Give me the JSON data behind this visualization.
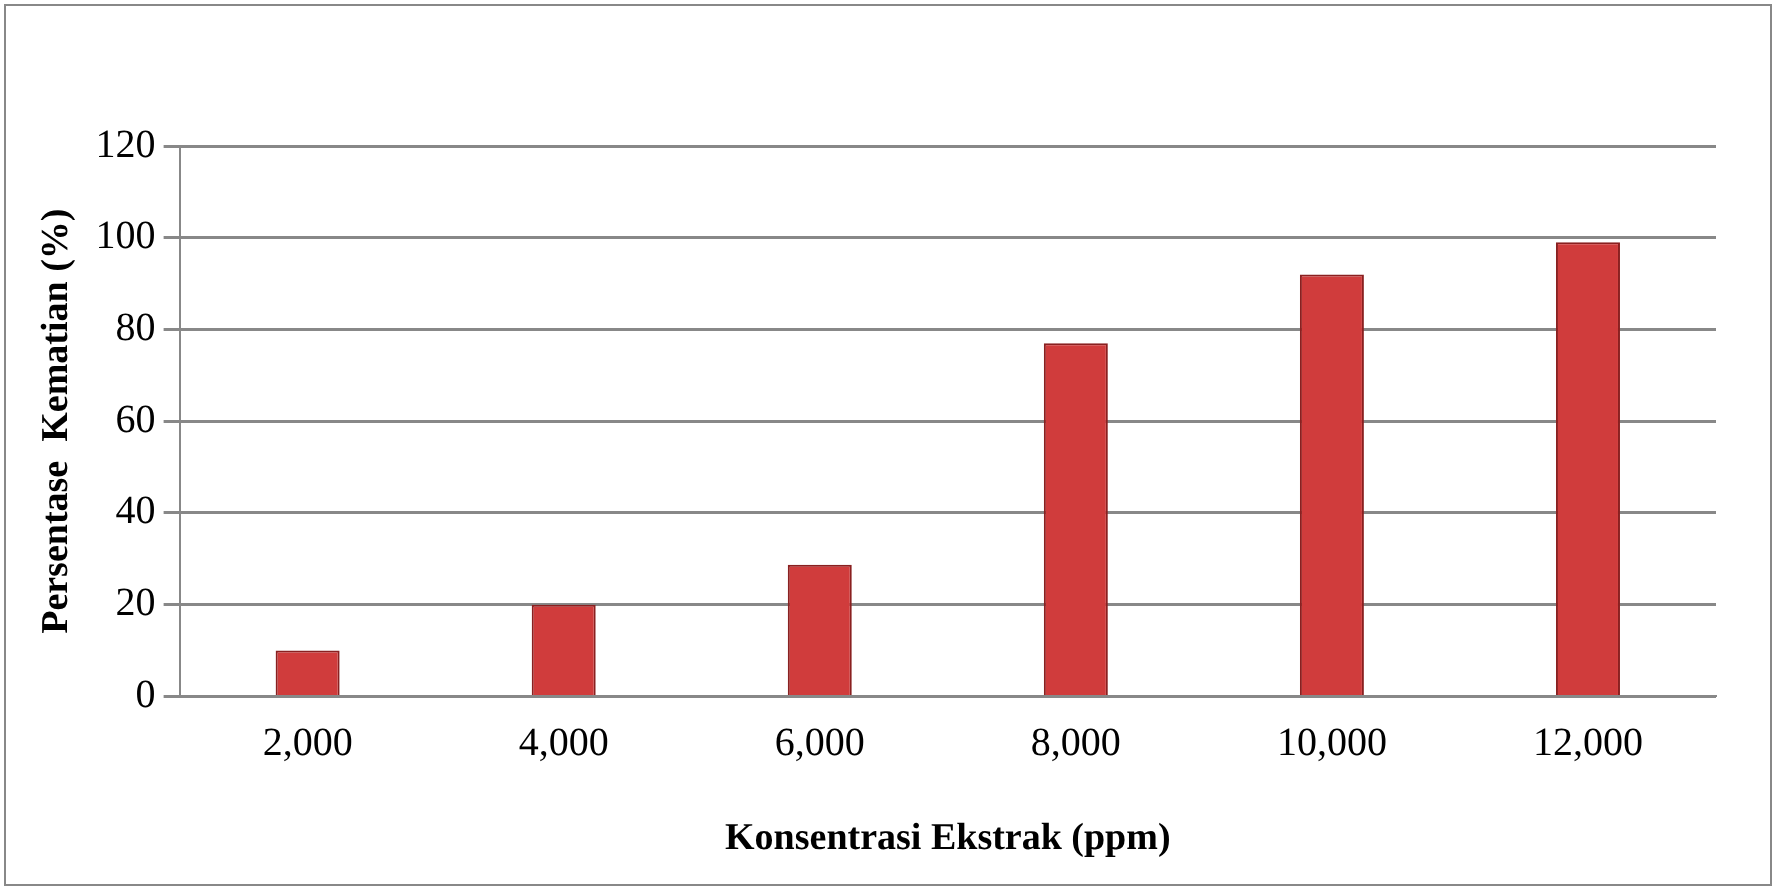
{
  "chart_data": {
    "type": "bar",
    "xlabel": "Konsentrasi Ekstrak (ppm)",
    "ylabel": "Persentase  Kematian (%)",
    "categories": [
      "2,000",
      "4,000",
      "6,000",
      "8,000",
      "10,000",
      "12,000"
    ],
    "values": [
      10,
      20,
      28.7,
      77,
      92,
      99
    ],
    "color": "#d03c3c",
    "ylim": [
      0,
      120
    ],
    "yticks": [
      0,
      20,
      40,
      60,
      80,
      100,
      120
    ],
    "grid": "y"
  }
}
